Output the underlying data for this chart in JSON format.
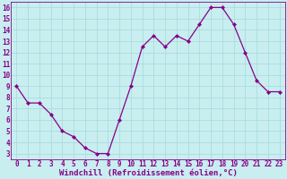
{
  "x": [
    0,
    1,
    2,
    3,
    4,
    5,
    6,
    7,
    8,
    9,
    10,
    11,
    12,
    13,
    14,
    15,
    16,
    17,
    18,
    19,
    20,
    21,
    22,
    23
  ],
  "y": [
    9,
    7.5,
    7.5,
    6.5,
    5,
    4.5,
    3.5,
    3,
    3,
    6,
    9,
    12.5,
    13.5,
    12.5,
    13.5,
    13,
    14.5,
    16,
    16,
    14.5,
    12,
    9.5,
    8.5,
    8.5
  ],
  "line_color": "#880088",
  "marker_color": "#880088",
  "bg_color": "#C8EEF0",
  "grid_color": "#AADDDD",
  "xlabel": "Windchill (Refroidissement éolien,°C)",
  "xlabel_color": "#880088",
  "xlabel_fontsize": 6.5,
  "tick_color": "#880088",
  "tick_fontsize": 5.5,
  "ylim": [
    2.5,
    16.5
  ],
  "xlim": [
    -0.5,
    23.5
  ],
  "yticks": [
    3,
    4,
    5,
    6,
    7,
    8,
    9,
    10,
    11,
    12,
    13,
    14,
    15,
    16
  ],
  "xticks": [
    0,
    1,
    2,
    3,
    4,
    5,
    6,
    7,
    8,
    9,
    10,
    11,
    12,
    13,
    14,
    15,
    16,
    17,
    18,
    19,
    20,
    21,
    22,
    23
  ]
}
